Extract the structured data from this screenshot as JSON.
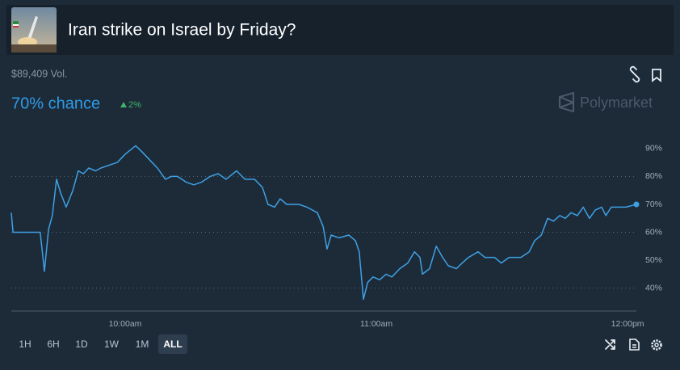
{
  "header": {
    "title": "Iran strike on Israel by Friday?"
  },
  "volume": "$89,409 Vol.",
  "chance": "70% chance",
  "change": "2%",
  "brand": "Polymarket",
  "time_ranges": [
    "1H",
    "6H",
    "1D",
    "1W",
    "1M",
    "ALL"
  ],
  "selected_range": 5,
  "chart_data": {
    "type": "line",
    "color": "#3ea0e4",
    "grid": true,
    "x": [
      572.8,
      573.2,
      579.7,
      580.7,
      581.7,
      582.6,
      583.6,
      584.6,
      585.9,
      587.5,
      588.8,
      590.0,
      591.3,
      592.9,
      594.2,
      596.1,
      598.1,
      600.0,
      602.5,
      603.9,
      605.8,
      607.7,
      609.6,
      611.0,
      612.5,
      614.5,
      616.4,
      618.3,
      620.3,
      622.2,
      624.1,
      626.6,
      628.6,
      630.9,
      632.8,
      634.1,
      635.7,
      637.0,
      638.6,
      641.5,
      643.4,
      645.9,
      647.3,
      648.2,
      649.2,
      651.1,
      653.4,
      655.0,
      655.9,
      656.9,
      657.9,
      659.2,
      660.8,
      662.3,
      663.7,
      665.6,
      667.5,
      669.1,
      670.4,
      671.0,
      672.7,
      674.3,
      675.8,
      677.2,
      679.1,
      680.5,
      682.0,
      684.3,
      685.9,
      688.2,
      689.8,
      691.7,
      694.5,
      696.5,
      697.8,
      699.4,
      700.9,
      702.3,
      703.8,
      705.1,
      706.5,
      708.0,
      709.4,
      710.9,
      712.3,
      713.8,
      714.8,
      716.1,
      717.7,
      719.6,
      722.1
    ],
    "values": [
      67,
      60,
      60,
      46,
      61,
      66,
      79,
      74,
      69,
      75,
      82,
      81,
      83,
      82,
      83,
      84,
      85,
      88,
      91,
      89,
      86,
      83,
      79,
      80,
      80,
      78,
      77,
      78,
      80,
      81,
      79,
      82,
      79,
      79,
      76,
      70,
      69,
      72,
      70,
      70,
      69,
      67,
      62,
      54,
      59,
      58,
      59,
      57,
      53,
      36,
      42,
      44,
      43,
      45,
      44,
      47,
      49,
      53,
      51,
      45,
      47,
      55,
      51,
      48,
      47,
      49,
      51,
      53,
      51,
      51,
      49,
      51,
      51,
      53,
      57,
      59,
      65,
      64,
      66,
      65,
      67,
      66,
      69,
      65,
      68,
      69,
      66,
      69,
      69,
      69,
      70
    ],
    "xlim": [
      572.8,
      722.1
    ],
    "ylim": [
      31.8,
      96.9
    ],
    "xticks": [
      {
        "value": 600,
        "label": "10:00am"
      },
      {
        "value": 660,
        "label": "11:00am"
      },
      {
        "value": 720,
        "label": "12:00pm"
      }
    ],
    "yticks": [
      {
        "value": 40,
        "label": "40%"
      },
      {
        "value": 50,
        "label": "50%"
      },
      {
        "value": 60,
        "label": "60%"
      },
      {
        "value": 70,
        "label": "70%"
      },
      {
        "value": 80,
        "label": "80%"
      },
      {
        "value": 90,
        "label": "90%"
      }
    ]
  }
}
